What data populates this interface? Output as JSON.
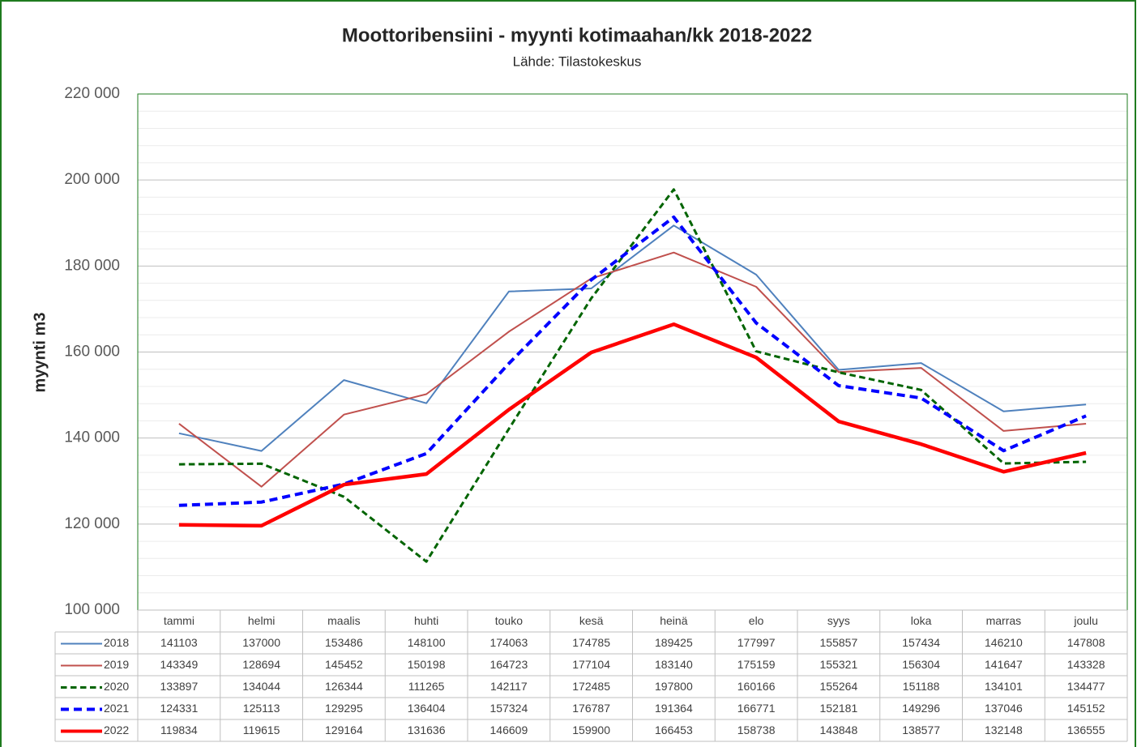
{
  "chart_data": {
    "type": "line",
    "title": "Moottoribensiini - myynti kotimaahan/kk 2018-2022",
    "subtitle": "Lähde: Tilastokeskus",
    "y_label": "myynti m3",
    "categories": [
      "tammi",
      "helmi",
      "maalis",
      "huhti",
      "touko",
      "kesä",
      "heinä",
      "elo",
      "syys",
      "loka",
      "marras",
      "joulu"
    ],
    "ylim": [
      100000,
      220000
    ],
    "yticks": [
      {
        "value": 100000,
        "label": "100 000"
      },
      {
        "value": 120000,
        "label": "120 000"
      },
      {
        "value": 140000,
        "label": "140 000"
      },
      {
        "value": 160000,
        "label": "160 000"
      },
      {
        "value": 180000,
        "label": "180 000"
      },
      {
        "value": 200000,
        "label": "200 000"
      },
      {
        "value": 220000,
        "label": "220 000"
      }
    ],
    "minor_yticks": [
      104000,
      108000,
      112000,
      116000,
      124000,
      128000,
      132000,
      136000,
      144000,
      148000,
      152000,
      156000,
      164000,
      168000,
      172000,
      176000,
      184000,
      188000,
      192000,
      196000,
      204000,
      208000,
      212000,
      216000
    ],
    "grid": true,
    "data_table": true,
    "series": [
      {
        "name": "2018",
        "color": "#4f81bd",
        "dashed": false,
        "values": [
          141103,
          137000,
          153486,
          148100,
          174063,
          174785,
          189425,
          177997,
          155857,
          157434,
          146210,
          147808
        ]
      },
      {
        "name": "2019",
        "color": "#c0504d",
        "dashed": false,
        "values": [
          143349,
          128694,
          145452,
          150198,
          164723,
          177104,
          183140,
          175159,
          155321,
          156304,
          141647,
          143328
        ]
      },
      {
        "name": "2020",
        "color": "#006400",
        "dashed": true,
        "values": [
          133897,
          134044,
          126344,
          111265,
          142117,
          172485,
          197800,
          160166,
          155264,
          151188,
          134101,
          134477
        ]
      },
      {
        "name": "2021",
        "color": "#0000ff",
        "dashed": true,
        "values": [
          124331,
          125113,
          129295,
          136404,
          157324,
          176787,
          191364,
          166771,
          152181,
          149296,
          137046,
          145152
        ]
      },
      {
        "name": "2022",
        "color": "#ff0000",
        "dashed": false,
        "values": [
          119834,
          119615,
          129164,
          131636,
          146609,
          159900,
          166453,
          158738,
          143848,
          138577,
          132148,
          136555
        ]
      }
    ]
  }
}
